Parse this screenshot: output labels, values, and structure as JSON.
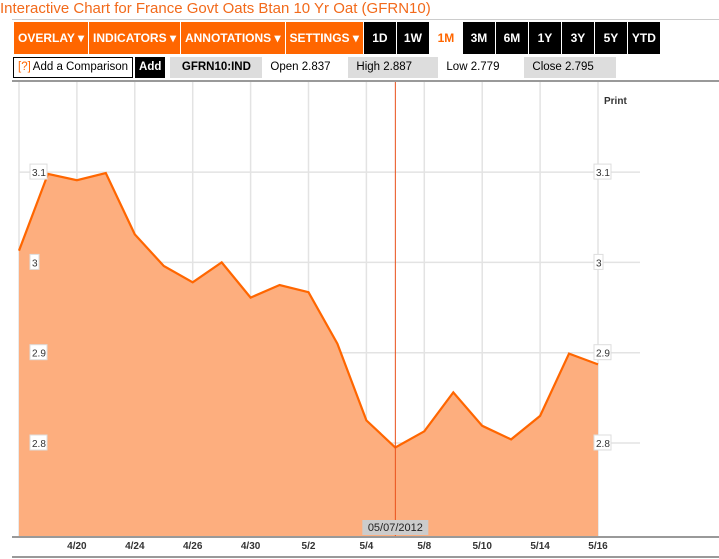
{
  "title": "Interactive Chart for France Govt Oats Btan 10 Yr Oat (GFRN10)",
  "toolbar": {
    "menus": [
      "OVERLAY ▾",
      "INDICATORS ▾",
      "ANNOTATIONS ▾",
      "SETTINGS ▾"
    ],
    "ranges": [
      "1D",
      "1W",
      "1M",
      "3M",
      "6M",
      "1Y",
      "3Y",
      "5Y",
      "YTD"
    ],
    "active_range": "1M"
  },
  "comparison": {
    "help": "[?]",
    "label": "Add a Comparison",
    "add": "Add"
  },
  "quote": {
    "symbol": "GFRN10:IND",
    "open": "Open 2.837",
    "high": "High 2.887",
    "low": "Low 2.779",
    "close": "Close 2.795"
  },
  "print": "Print",
  "crosshair_label": "05/07/2012",
  "colors": {
    "accent": "#ff6600",
    "fill": "#fdae7e",
    "crosshair": "#e8501a"
  },
  "chart_data": {
    "type": "area",
    "x": [
      "4/18",
      "4/19",
      "4/20",
      "4/23",
      "4/24",
      "4/25",
      "4/26",
      "4/27",
      "4/30",
      "5/1",
      "5/2",
      "5/3",
      "5/4",
      "5/7",
      "5/8",
      "5/9",
      "5/10",
      "5/11",
      "5/14",
      "5/15",
      "5/16"
    ],
    "values": [
      3.013,
      3.098,
      3.091,
      3.099,
      3.031,
      2.996,
      2.978,
      3.0,
      2.961,
      2.975,
      2.967,
      2.91,
      2.825,
      2.795,
      2.813,
      2.856,
      2.819,
      2.804,
      2.83,
      2.899,
      2.887
    ],
    "x_tick_labels": [
      "4/20",
      "4/24",
      "4/26",
      "4/30",
      "5/2",
      "5/4",
      "5/8",
      "5/10",
      "5/14",
      "5/16"
    ],
    "y_ticks": [
      "3.1",
      "3",
      "2.9",
      "2.8"
    ],
    "y_tick_values": [
      3.1,
      3.0,
      2.9,
      2.8
    ],
    "ylim": [
      2.697,
      3.202
    ],
    "grid": true,
    "crosshair_x": "5/7"
  }
}
